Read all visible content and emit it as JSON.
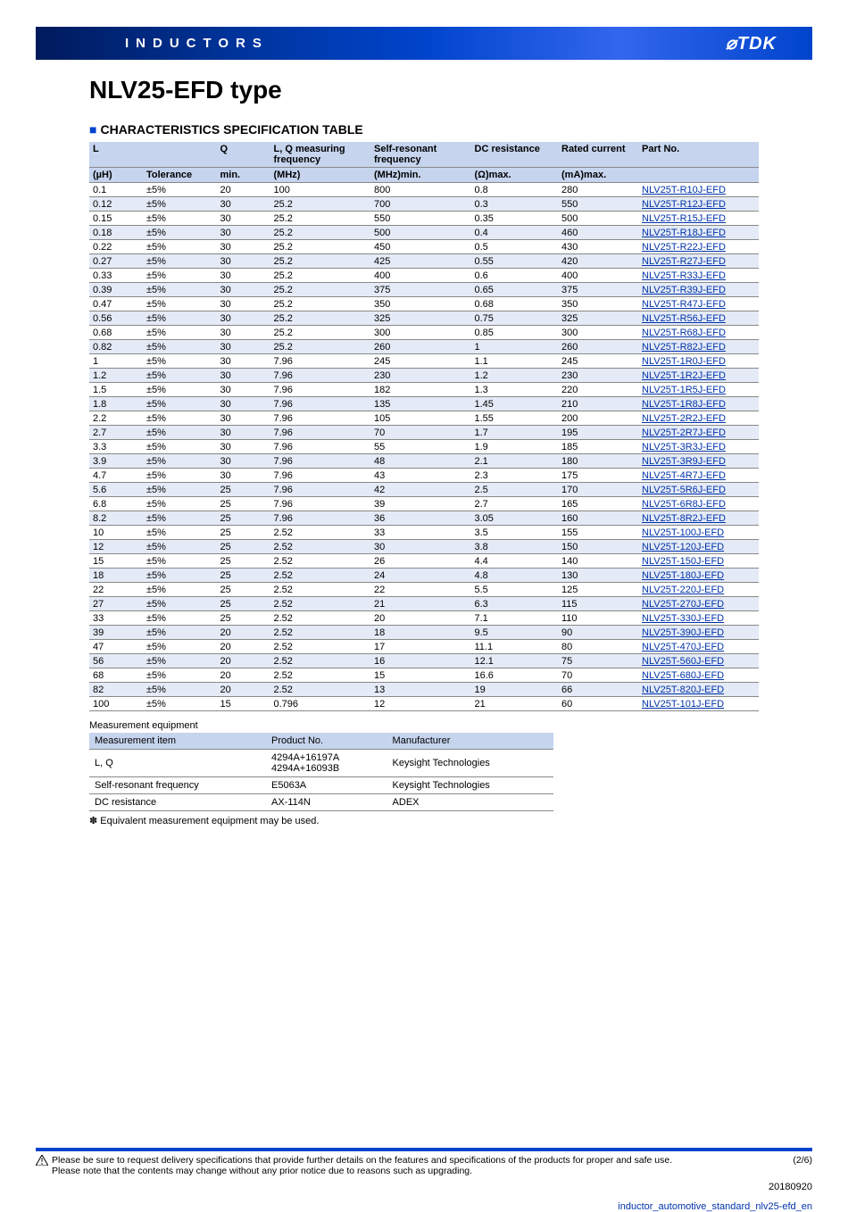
{
  "banner": {
    "category": "INDUCTORS",
    "logo": "⌀TDK"
  },
  "title": "NLV25-EFD type",
  "section_title": "CHARACTERISTICS SPECIFICATION TABLE",
  "spec_table": {
    "header1": [
      "L",
      "",
      "Q",
      "L, Q measuring frequency",
      "Self-resonant frequency",
      "DC resistance",
      "Rated current",
      "Part No."
    ],
    "header2": [
      "(µH)",
      "Tolerance",
      "min.",
      "(MHz)",
      "(MHz)min.",
      "(Ω)max.",
      "(mA)max.",
      ""
    ],
    "col_widths": [
      "8%",
      "11%",
      "8%",
      "15%",
      "15%",
      "13%",
      "12%",
      "18%"
    ],
    "rows": [
      [
        "0.1",
        "±5%",
        "20",
        "100",
        "800",
        "0.8",
        "280",
        "NLV25T-R10J-EFD"
      ],
      [
        "0.12",
        "±5%",
        "30",
        "25.2",
        "700",
        "0.3",
        "550",
        "NLV25T-R12J-EFD"
      ],
      [
        "0.15",
        "±5%",
        "30",
        "25.2",
        "550",
        "0.35",
        "500",
        "NLV25T-R15J-EFD"
      ],
      [
        "0.18",
        "±5%",
        "30",
        "25.2",
        "500",
        "0.4",
        "460",
        "NLV25T-R18J-EFD"
      ],
      [
        "0.22",
        "±5%",
        "30",
        "25.2",
        "450",
        "0.5",
        "430",
        "NLV25T-R22J-EFD"
      ],
      [
        "0.27",
        "±5%",
        "30",
        "25.2",
        "425",
        "0.55",
        "420",
        "NLV25T-R27J-EFD"
      ],
      [
        "0.33",
        "±5%",
        "30",
        "25.2",
        "400",
        "0.6",
        "400",
        "NLV25T-R33J-EFD"
      ],
      [
        "0.39",
        "±5%",
        "30",
        "25.2",
        "375",
        "0.65",
        "375",
        "NLV25T-R39J-EFD"
      ],
      [
        "0.47",
        "±5%",
        "30",
        "25.2",
        "350",
        "0.68",
        "350",
        "NLV25T-R47J-EFD"
      ],
      [
        "0.56",
        "±5%",
        "30",
        "25.2",
        "325",
        "0.75",
        "325",
        "NLV25T-R56J-EFD"
      ],
      [
        "0.68",
        "±5%",
        "30",
        "25.2",
        "300",
        "0.85",
        "300",
        "NLV25T-R68J-EFD"
      ],
      [
        "0.82",
        "±5%",
        "30",
        "25.2",
        "260",
        "1",
        "260",
        "NLV25T-R82J-EFD"
      ],
      [
        "1",
        "±5%",
        "30",
        "7.96",
        "245",
        "1.1",
        "245",
        "NLV25T-1R0J-EFD"
      ],
      [
        "1.2",
        "±5%",
        "30",
        "7.96",
        "230",
        "1.2",
        "230",
        "NLV25T-1R2J-EFD"
      ],
      [
        "1.5",
        "±5%",
        "30",
        "7.96",
        "182",
        "1.3",
        "220",
        "NLV25T-1R5J-EFD"
      ],
      [
        "1.8",
        "±5%",
        "30",
        "7.96",
        "135",
        "1.45",
        "210",
        "NLV25T-1R8J-EFD"
      ],
      [
        "2.2",
        "±5%",
        "30",
        "7.96",
        "105",
        "1.55",
        "200",
        "NLV25T-2R2J-EFD"
      ],
      [
        "2.7",
        "±5%",
        "30",
        "7.96",
        "70",
        "1.7",
        "195",
        "NLV25T-2R7J-EFD"
      ],
      [
        "3.3",
        "±5%",
        "30",
        "7.96",
        "55",
        "1.9",
        "185",
        "NLV25T-3R3J-EFD"
      ],
      [
        "3.9",
        "±5%",
        "30",
        "7.96",
        "48",
        "2.1",
        "180",
        "NLV25T-3R9J-EFD"
      ],
      [
        "4.7",
        "±5%",
        "30",
        "7.96",
        "43",
        "2.3",
        "175",
        "NLV25T-4R7J-EFD"
      ],
      [
        "5.6",
        "±5%",
        "25",
        "7.96",
        "42",
        "2.5",
        "170",
        "NLV25T-5R6J-EFD"
      ],
      [
        "6.8",
        "±5%",
        "25",
        "7.96",
        "39",
        "2.7",
        "165",
        "NLV25T-6R8J-EFD"
      ],
      [
        "8.2",
        "±5%",
        "25",
        "7.96",
        "36",
        "3.05",
        "160",
        "NLV25T-8R2J-EFD"
      ],
      [
        "10",
        "±5%",
        "25",
        "2.52",
        "33",
        "3.5",
        "155",
        "NLV25T-100J-EFD"
      ],
      [
        "12",
        "±5%",
        "25",
        "2.52",
        "30",
        "3.8",
        "150",
        "NLV25T-120J-EFD"
      ],
      [
        "15",
        "±5%",
        "25",
        "2.52",
        "26",
        "4.4",
        "140",
        "NLV25T-150J-EFD"
      ],
      [
        "18",
        "±5%",
        "25",
        "2.52",
        "24",
        "4.8",
        "130",
        "NLV25T-180J-EFD"
      ],
      [
        "22",
        "±5%",
        "25",
        "2.52",
        "22",
        "5.5",
        "125",
        "NLV25T-220J-EFD"
      ],
      [
        "27",
        "±5%",
        "25",
        "2.52",
        "21",
        "6.3",
        "115",
        "NLV25T-270J-EFD"
      ],
      [
        "33",
        "±5%",
        "25",
        "2.52",
        "20",
        "7.1",
        "110",
        "NLV25T-330J-EFD"
      ],
      [
        "39",
        "±5%",
        "20",
        "2.52",
        "18",
        "9.5",
        "90",
        "NLV25T-390J-EFD"
      ],
      [
        "47",
        "±5%",
        "20",
        "2.52",
        "17",
        "11.1",
        "80",
        "NLV25T-470J-EFD"
      ],
      [
        "56",
        "±5%",
        "20",
        "2.52",
        "16",
        "12.1",
        "75",
        "NLV25T-560J-EFD"
      ],
      [
        "68",
        "±5%",
        "20",
        "2.52",
        "15",
        "16.6",
        "70",
        "NLV25T-680J-EFD"
      ],
      [
        "82",
        "±5%",
        "20",
        "2.52",
        "13",
        "19",
        "66",
        "NLV25T-820J-EFD"
      ],
      [
        "100",
        "±5%",
        "15",
        "0.796",
        "12",
        "21",
        "60",
        "NLV25T-101J-EFD"
      ]
    ]
  },
  "meas_title": "Measurement equipment",
  "meas_table": {
    "header": [
      "Measurement item",
      "Product No.",
      "Manufacturer"
    ],
    "rows": [
      [
        "L, Q",
        "4294A+16197A\n4294A+16093B",
        "Keysight Technologies"
      ],
      [
        "Self-resonant frequency",
        "E5063A",
        "Keysight Technologies"
      ],
      [
        "DC resistance",
        "AX-114N",
        "ADEX"
      ]
    ]
  },
  "meas_footnote": "✽ Equivalent measurement equipment may be used.",
  "footer": {
    "warn1": "Please be sure to request delivery specifications that provide further details on the features and specifications of the products for proper and safe use.",
    "warn2": "Please note that the contents may change without any prior notice due to reasons such as upgrading.",
    "page": "(2/6)",
    "date": "20180920",
    "filename": "inductor_automotive_standard_nlv25-efd_en"
  }
}
